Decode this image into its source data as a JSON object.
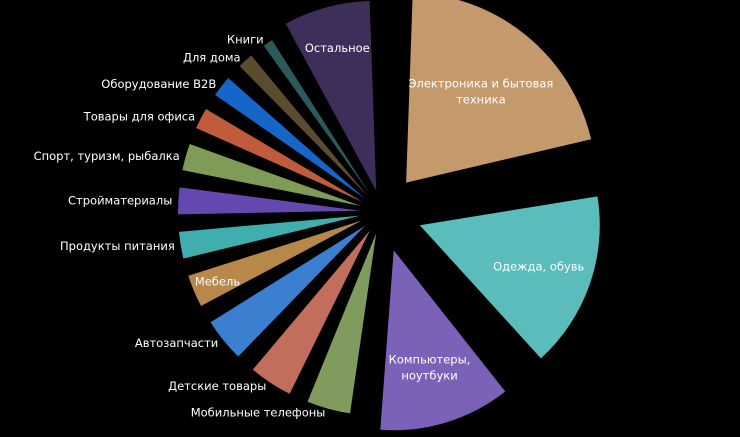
{
  "chart_data": {
    "type": "pie",
    "title": "",
    "legend": "none",
    "grid": false,
    "slices": [
      {
        "label": "Электроника и бытовая техника",
        "value": 22,
        "color": "#c49a6c",
        "label_color": "#ffffff"
      },
      {
        "label": "Одежда, обувь",
        "value": 17,
        "color": "#5bbcbc",
        "label_color": "#ffffff"
      },
      {
        "label": "Компьютеры, ноутбуки",
        "value": 13,
        "color": "#7b62b8",
        "label_color": "#ffffff"
      },
      {
        "label": "Мобильные телефоны",
        "value": 5,
        "color": "#7f9c5e",
        "label_color": "#ffffff"
      },
      {
        "label": "Детские товары",
        "value": 5,
        "color": "#c16f5c",
        "label_color": "#ffffff"
      },
      {
        "label": "Автозапчасти",
        "value": 5,
        "color": "#3a7fd0",
        "label_color": "#ffffff"
      },
      {
        "label": "Мебель",
        "value": 4,
        "color": "#b8874a",
        "label_color": "#ffffff"
      },
      {
        "label": "Продукты питания",
        "value": 3.5,
        "color": "#40aeae",
        "label_color": "#ffffff"
      },
      {
        "label": "Стройматериалы",
        "value": 3.5,
        "color": "#6547b0",
        "label_color": "#ffffff"
      },
      {
        "label": "Спорт, туризм, рыбалка",
        "value": 3.5,
        "color": "#7e9c55",
        "label_color": "#ffffff"
      },
      {
        "label": "Товары для офиса",
        "value": 3,
        "color": "#c05b3c",
        "label_color": "#ffffff"
      },
      {
        "label": "Оборудование B2B",
        "value": 3,
        "color": "#1665c9",
        "label_color": "#ffffff"
      },
      {
        "label": "Для дома",
        "value": 2.5,
        "color": "#5b4b2f",
        "label_color": "#ffffff"
      },
      {
        "label": "Книги",
        "value": 2,
        "color": "#2b5a5b",
        "label_color": "#ffffff"
      },
      {
        "label": "Остальное",
        "value": 8.5,
        "color": "#3e2f5a",
        "label_color": "#ffffff"
      }
    ]
  }
}
